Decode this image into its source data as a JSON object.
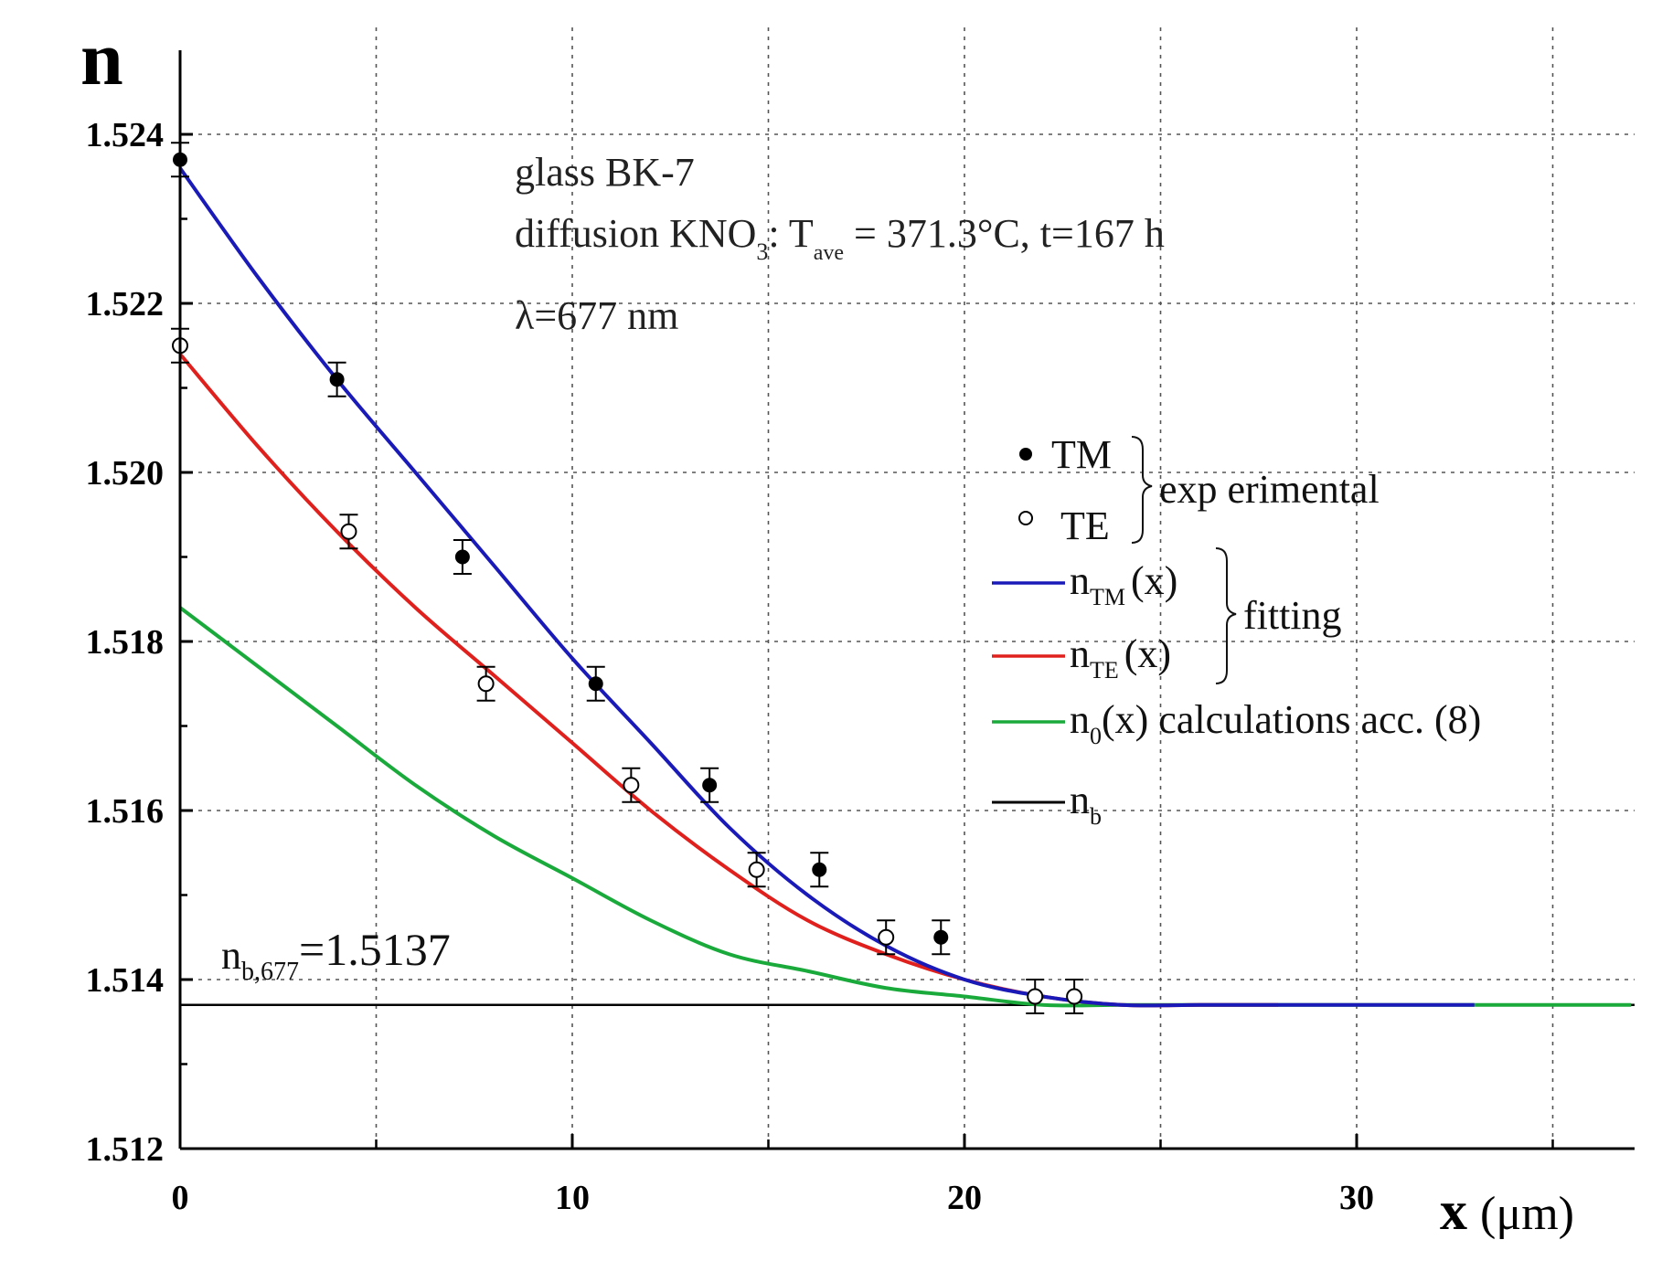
{
  "chart_data": {
    "type": "scatter",
    "title": "",
    "xlabel": "x",
    "xlabel_unit": "(μm)",
    "ylabel": "n",
    "xlim": [
      0,
      37
    ],
    "ylim": [
      1.512,
      1.525
    ],
    "x_ticks": [
      0,
      10,
      20,
      30
    ],
    "x_tick_labels": [
      "0",
      "10",
      "20",
      "30"
    ],
    "y_ticks": [
      1.512,
      1.514,
      1.516,
      1.518,
      1.52,
      1.522,
      1.524
    ],
    "y_tick_labels": [
      "1.512",
      "1.514",
      "1.516",
      "1.518",
      "1.520",
      "1.522",
      "1.524"
    ],
    "grid": true,
    "annotations": {
      "glass": "glass BK-7",
      "diffusion_prefix": "diffusion KNO",
      "diffusion_sub": "3",
      "diffusion_colon": ": T",
      "diffusion_tsub": "ave",
      "diffusion_rest": " = 371.3°C, t=167 h",
      "wavelength": "λ=677 nm",
      "nb_main": "n",
      "nb_sub": "b,677",
      "nb_value": "=1.5137"
    },
    "series": [
      {
        "name": "TM",
        "group": "experimental",
        "kind": "points",
        "marker": "filled",
        "x": [
          0,
          4.0,
          7.2,
          10.6,
          13.5,
          16.3,
          19.4
        ],
        "y": [
          1.5237,
          1.5211,
          1.519,
          1.5175,
          1.5163,
          1.5153,
          1.5145
        ],
        "err": [
          0.0002,
          0.0002,
          0.0002,
          0.0002,
          0.0002,
          0.0002,
          0.0002
        ]
      },
      {
        "name": "TE",
        "group": "experimental",
        "kind": "points",
        "marker": "open",
        "x": [
          0,
          4.3,
          7.8,
          11.5,
          14.7,
          18.0,
          21.8,
          22.8
        ],
        "y": [
          1.5215,
          1.5193,
          1.5175,
          1.5163,
          1.5153,
          1.5145,
          1.5138,
          1.5138
        ],
        "err": [
          0.0002,
          0.0002,
          0.0002,
          0.0002,
          0.0002,
          0.0002,
          0.0002,
          0.0002
        ]
      },
      {
        "name": "n_TM(x)",
        "group": "fitting",
        "kind": "line",
        "color": "#1a1ab8",
        "x": [
          0,
          2,
          4,
          6,
          8,
          10,
          12,
          14,
          16,
          18,
          20,
          22,
          24,
          26,
          28,
          30,
          32,
          33
        ],
        "y": [
          1.5236,
          1.5223,
          1.5211,
          1.52,
          1.5189,
          1.5178,
          1.5168,
          1.5158,
          1.515,
          1.5144,
          1.514,
          1.5138,
          1.5137,
          1.5137,
          1.5137,
          1.5137,
          1.5137,
          1.5137
        ]
      },
      {
        "name": "n_TE(x)",
        "group": "fitting",
        "kind": "line",
        "color": "#e0201c",
        "x": [
          0,
          2,
          4,
          6,
          8,
          10,
          12,
          14,
          16,
          18,
          20,
          22,
          24,
          26,
          28
        ],
        "y": [
          1.5214,
          1.5203,
          1.5193,
          1.5184,
          1.5176,
          1.5168,
          1.516,
          1.5153,
          1.5147,
          1.5143,
          1.514,
          1.5138,
          1.5137,
          1.5137,
          1.5137
        ]
      },
      {
        "name": "n_0(x) calculations acc. (8)",
        "group": "calculation",
        "kind": "line",
        "color": "#1aaa3c",
        "x": [
          0,
          2,
          4,
          6,
          8,
          10,
          12,
          14,
          16,
          18,
          20,
          22,
          24,
          26,
          28,
          30,
          32,
          34,
          37
        ],
        "y": [
          1.5184,
          1.5177,
          1.517,
          1.5163,
          1.5157,
          1.5152,
          1.5147,
          1.5143,
          1.5141,
          1.5139,
          1.5138,
          1.5137,
          1.5137,
          1.5137,
          1.5137,
          1.5137,
          1.5137,
          1.5137,
          1.5137
        ]
      },
      {
        "name": "n_b",
        "group": "base",
        "kind": "hline",
        "color": "#000000",
        "y": 1.5137
      }
    ],
    "legend": {
      "placement": "right",
      "tm_label": "TM",
      "te_label": "TE",
      "experimental_label": "exp erimental",
      "fitting_label": "fitting",
      "ntm_main": "n",
      "ntm_sub": "TM",
      "ntm_arg": "(x)",
      "nte_main": "n",
      "nte_sub": "TE",
      "nte_arg": "(x)",
      "n0_main": "n",
      "n0_sub": "0",
      "n0_rest": "(x) calculations acc. (8)",
      "nb_main": "n",
      "nb_sub": "b"
    }
  }
}
